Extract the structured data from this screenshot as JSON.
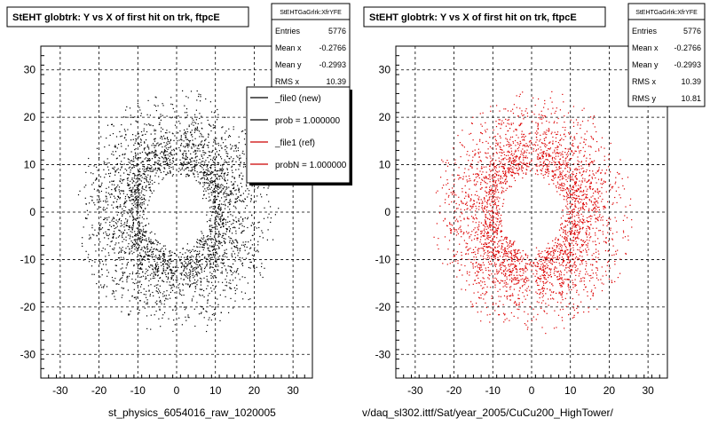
{
  "chart_data": [
    {
      "type": "scatter",
      "title": "StEHT globtrk: Y vs X of first hit on trk, ftpcE",
      "xlim": [
        -35,
        35
      ],
      "ylim": [
        -35,
        35
      ],
      "xticks": [
        -30,
        -20,
        -10,
        0,
        10,
        20,
        30
      ],
      "yticks": [
        -30,
        -20,
        -10,
        0,
        10,
        20,
        30
      ],
      "grid": true,
      "color": "#000000",
      "stats": {
        "name": "StEHTGaGrlrk:XfrYFE",
        "rows": [
          {
            "label": "Entries",
            "value": "5776"
          },
          {
            "label": "Mean x",
            "value": "-0.2766"
          },
          {
            "label": "Mean y",
            "value": "-0.2993"
          },
          {
            "label": "RMS x",
            "value": "10.39"
          }
        ]
      },
      "legend": {
        "placement": "top-right",
        "entries": [
          {
            "label": "_file0 (new)",
            "color": "#000000"
          },
          {
            "label": "prob = 1.000000",
            "color": "#000000"
          },
          {
            "label": "_file1 (ref)",
            "color": "#cc0000"
          },
          {
            "label": "probN = 1.000000",
            "color": "#cc0000"
          }
        ]
      },
      "footer": "st_physics_6054016_raw_1020005"
    },
    {
      "type": "scatter",
      "title": "StEHT globtrk: Y vs X of first hit on trk, ftpcE",
      "xlim": [
        -35,
        35
      ],
      "ylim": [
        -35,
        35
      ],
      "xticks": [
        -30,
        -20,
        -10,
        0,
        10,
        20,
        30
      ],
      "yticks": [
        -30,
        -20,
        -10,
        0,
        10,
        20,
        30
      ],
      "grid": true,
      "color": "#dd0000",
      "stats": {
        "name": "StEHTGaGrlrk:XfrYFE",
        "rows": [
          {
            "label": "Entries",
            "value": "5776"
          },
          {
            "label": "Mean x",
            "value": "-0.2766"
          },
          {
            "label": "Mean y",
            "value": "-0.2993"
          },
          {
            "label": "RMS x",
            "value": "10.39"
          },
          {
            "label": "RMS y",
            "value": "10.81"
          }
        ]
      },
      "footer": "v/daq_sl302.ittf/Sat/year_2005/CuCu200_HighTower/"
    }
  ]
}
